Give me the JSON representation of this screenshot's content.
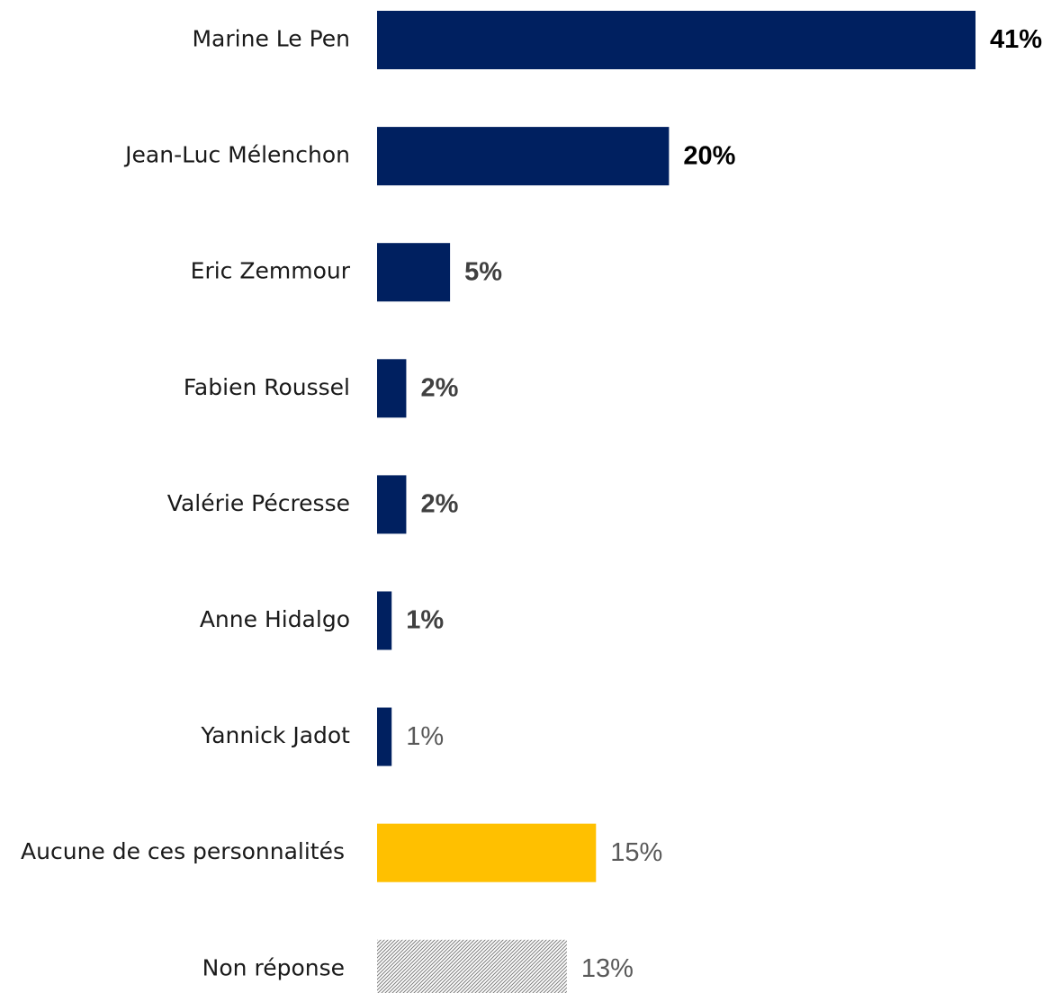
{
  "chart_data": {
    "type": "bar",
    "orientation": "horizontal",
    "title": "",
    "xlabel": "",
    "ylabel": "",
    "xlim": [
      0,
      41
    ],
    "grid": false,
    "legend": "none",
    "categories": [
      "Marine Le Pen",
      "Jean-Luc Mélenchon",
      "Eric Zemmour",
      "Fabien Roussel",
      "Valérie Pécresse",
      "Anne Hidalgo",
      "Yannick Jadot",
      "Aucune de ces personnalités",
      "Non réponse"
    ],
    "values": [
      41,
      20,
      5,
      2,
      2,
      1,
      1,
      15,
      13
    ],
    "value_labels": [
      "41%",
      "20%",
      "5%",
      "2%",
      "2%",
      "1%",
      "1%",
      "15%",
      "13%"
    ],
    "bar_colors": [
      "#002060",
      "#002060",
      "#002060",
      "#002060",
      "#002060",
      "#002060",
      "#002060",
      "#FFC000",
      "hatched-gray"
    ],
    "label_emphasis": [
      "bold-black",
      "bold-black",
      "bold-gray",
      "bold-gray",
      "bold-gray",
      "bold-gray",
      "regular-gray",
      "regular-gray",
      "regular-gray"
    ],
    "colors": {
      "navy": "#002060",
      "gold": "#FFC000",
      "hatch": "#7f7f7f",
      "label_black": "#000000",
      "label_gray": "#404040",
      "label_light": "#595959"
    }
  }
}
